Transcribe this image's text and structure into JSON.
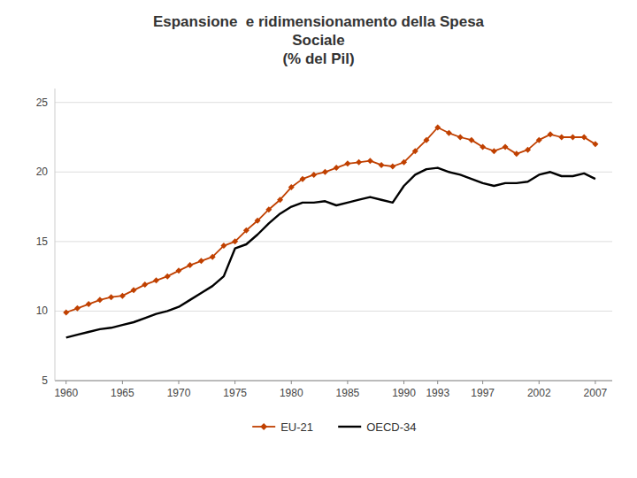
{
  "chart_data": {
    "type": "line",
    "title": "Espansione  e ridimensionamento della Spesa\nSociale\n(% del Pil)",
    "x": [
      1960,
      1961,
      1962,
      1963,
      1964,
      1965,
      1966,
      1967,
      1968,
      1969,
      1970,
      1971,
      1972,
      1973,
      1974,
      1975,
      1976,
      1977,
      1978,
      1979,
      1980,
      1981,
      1982,
      1983,
      1984,
      1985,
      1986,
      1987,
      1988,
      1989,
      1990,
      1991,
      1992,
      1993,
      1994,
      1995,
      1996,
      1997,
      1998,
      1999,
      2000,
      2001,
      2002,
      2003,
      2004,
      2005,
      2006,
      2007
    ],
    "series": [
      {
        "name": "EU-21",
        "color": "#C04000",
        "marker": "diamond",
        "values": [
          9.9,
          10.2,
          10.5,
          10.8,
          11.0,
          11.1,
          11.5,
          11.9,
          12.2,
          12.5,
          12.9,
          13.3,
          13.6,
          13.9,
          14.7,
          15.0,
          15.8,
          16.5,
          17.3,
          18.0,
          18.9,
          19.5,
          19.8,
          20.0,
          20.3,
          20.6,
          20.7,
          20.8,
          20.5,
          20.4,
          20.7,
          21.5,
          22.3,
          23.2,
          22.8,
          22.5,
          22.3,
          21.8,
          21.5,
          21.8,
          21.3,
          21.6,
          22.3,
          22.7,
          22.5,
          22.5,
          22.5,
          22.0
        ]
      },
      {
        "name": "OECD-34",
        "color": "#000000",
        "marker": "none",
        "values": [
          8.1,
          8.3,
          8.5,
          8.7,
          8.8,
          9.0,
          9.2,
          9.5,
          9.8,
          10.0,
          10.3,
          10.8,
          11.3,
          11.8,
          12.5,
          14.5,
          14.8,
          15.5,
          16.3,
          17.0,
          17.5,
          17.8,
          17.8,
          17.9,
          17.6,
          17.8,
          18.0,
          18.2,
          18.0,
          17.8,
          19.0,
          19.8,
          20.2,
          20.3,
          20.0,
          19.8,
          19.5,
          19.2,
          19.0,
          19.2,
          19.2,
          19.3,
          19.8,
          20.0,
          19.7,
          19.7,
          19.9,
          19.5
        ]
      }
    ],
    "xlim": [
      1959,
      2008.5
    ],
    "xticks": [
      1960,
      1965,
      1970,
      1975,
      1980,
      1985,
      1990,
      1993,
      1997,
      2002,
      2007
    ],
    "ylim": [
      5,
      26
    ],
    "yticks": [
      5,
      10,
      15,
      20,
      25
    ],
    "grid": true,
    "legend": "bottom"
  }
}
